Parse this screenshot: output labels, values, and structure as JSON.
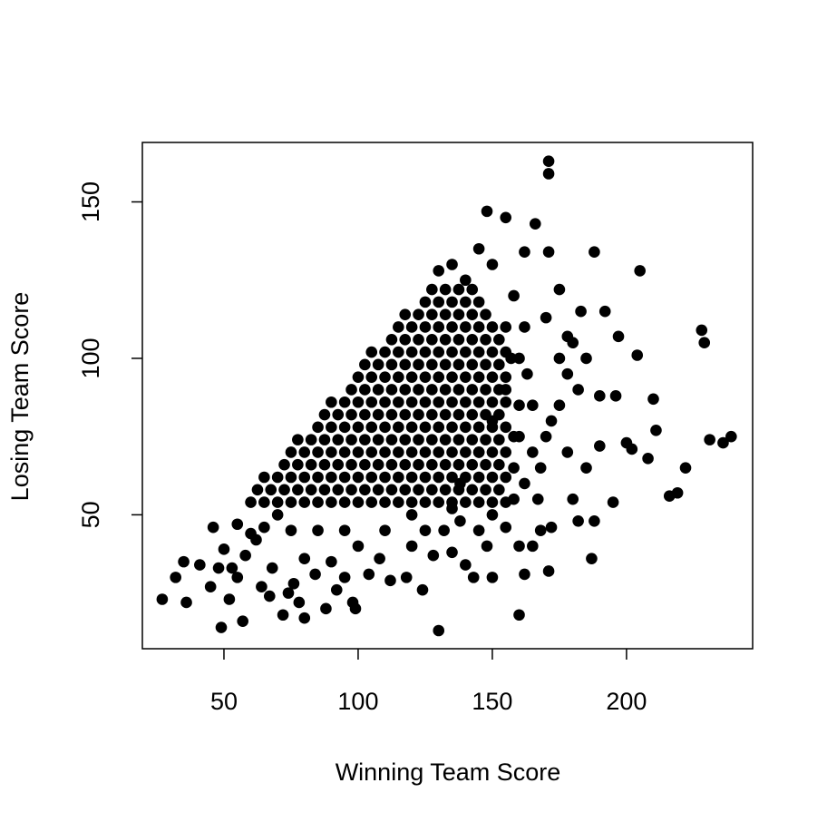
{
  "chart_data": {
    "type": "scatter",
    "x_label": "Winning Team Score",
    "y_label": "Losing Team Score",
    "color": "#000000",
    "xlim": [
      19.6,
      247
    ],
    "ylim": [
      7.2,
      169
    ],
    "xticks": [
      50,
      100,
      150,
      200
    ],
    "yticks": [
      50,
      100,
      150
    ],
    "x": [
      60,
      65,
      70,
      75,
      80,
      85,
      90,
      95,
      100,
      105,
      110,
      115,
      120,
      125,
      130,
      135,
      140,
      145,
      150,
      155,
      62.5,
      67.5,
      72.5,
      77.5,
      82.5,
      87.5,
      92.5,
      97.5,
      102.5,
      107.5,
      112.5,
      117.5,
      122.5,
      127.5,
      132.5,
      137.5,
      142.5,
      147.5,
      152.5,
      65,
      70,
      75,
      80,
      85,
      90,
      95,
      100,
      105,
      110,
      115,
      120,
      125,
      130,
      135,
      140,
      145,
      150,
      155,
      72.5,
      77.5,
      82.5,
      87.5,
      92.5,
      97.5,
      102.5,
      107.5,
      112.5,
      117.5,
      122.5,
      127.5,
      132.5,
      137.5,
      142.5,
      147.5,
      152.5,
      75,
      80,
      85,
      90,
      95,
      100,
      105,
      110,
      115,
      120,
      125,
      130,
      135,
      140,
      145,
      150,
      155,
      77.5,
      82.5,
      87.5,
      92.5,
      97.5,
      102.5,
      107.5,
      112.5,
      117.5,
      122.5,
      127.5,
      132.5,
      137.5,
      142.5,
      147.5,
      152.5,
      85,
      90,
      95,
      100,
      105,
      110,
      115,
      120,
      125,
      130,
      135,
      140,
      145,
      150,
      155,
      87.5,
      92.5,
      97.5,
      102.5,
      107.5,
      112.5,
      117.5,
      122.5,
      127.5,
      132.5,
      137.5,
      142.5,
      147.5,
      152.5,
      90,
      95,
      100,
      105,
      110,
      115,
      120,
      125,
      130,
      135,
      140,
      145,
      150,
      155,
      97.5,
      102.5,
      107.5,
      112.5,
      117.5,
      122.5,
      127.5,
      132.5,
      137.5,
      142.5,
      147.5,
      152.5,
      100,
      105,
      110,
      115,
      120,
      125,
      130,
      135,
      140,
      145,
      150,
      155,
      102.5,
      107.5,
      112.5,
      117.5,
      122.5,
      127.5,
      132.5,
      137.5,
      142.5,
      147.5,
      152.5,
      105,
      110,
      115,
      120,
      125,
      130,
      135,
      140,
      145,
      150,
      155,
      112.5,
      117.5,
      122.5,
      127.5,
      132.5,
      137.5,
      142.5,
      147.5,
      152.5,
      115,
      120,
      125,
      130,
      135,
      140,
      145,
      150,
      117.5,
      122.5,
      127.5,
      132.5,
      137.5,
      142.5,
      147.5,
      125,
      130,
      135,
      140,
      145,
      127.5,
      132.5,
      137.5,
      142.5,
      27,
      32,
      35,
      36,
      41,
      45,
      46,
      48,
      49,
      50,
      52,
      53,
      55,
      57,
      58,
      62,
      64,
      67,
      68,
      72,
      74,
      76,
      78,
      80,
      80,
      84,
      88,
      90,
      92,
      95,
      98,
      99,
      100,
      104,
      108,
      112,
      118,
      120,
      124,
      128,
      130,
      132,
      135,
      138,
      140,
      143,
      148,
      150,
      155,
      160,
      160,
      162,
      165,
      168,
      171,
      172,
      158,
      162,
      165,
      168,
      170,
      172,
      175,
      178,
      180,
      183,
      165,
      160,
      155,
      158,
      150,
      145,
      148,
      155,
      166,
      171,
      171,
      162,
      171,
      175,
      170,
      175,
      178,
      180,
      182,
      185,
      187,
      188,
      190,
      190,
      192,
      195,
      196,
      197,
      200,
      202,
      205,
      204,
      208,
      210,
      211,
      216,
      219,
      222,
      228,
      229,
      231,
      236,
      239,
      188,
      185,
      178,
      182,
      140,
      135,
      130,
      138,
      145,
      150,
      155,
      160,
      163,
      167,
      150,
      145,
      125,
      110,
      95,
      85,
      75,
      70,
      65,
      60,
      55,
      120,
      135,
      158,
      162,
      157,
      160,
      158
    ],
    "values": [
      54,
      54,
      54,
      54,
      54,
      54,
      54,
      54,
      54,
      54,
      54,
      54,
      54,
      54,
      54,
      54,
      54,
      54,
      54,
      54,
      58,
      58,
      58,
      58,
      58,
      58,
      58,
      58,
      58,
      58,
      58,
      58,
      58,
      58,
      58,
      58,
      58,
      58,
      58,
      62,
      62,
      62,
      62,
      62,
      62,
      62,
      62,
      62,
      62,
      62,
      62,
      62,
      62,
      62,
      62,
      62,
      62,
      62,
      66,
      66,
      66,
      66,
      66,
      66,
      66,
      66,
      66,
      66,
      66,
      66,
      66,
      66,
      66,
      66,
      66,
      70,
      70,
      70,
      70,
      70,
      70,
      70,
      70,
      70,
      70,
      70,
      70,
      70,
      70,
      70,
      70,
      70,
      74,
      74,
      74,
      74,
      74,
      74,
      74,
      74,
      74,
      74,
      74,
      74,
      74,
      74,
      74,
      74,
      78,
      78,
      78,
      78,
      78,
      78,
      78,
      78,
      78,
      78,
      78,
      78,
      78,
      78,
      78,
      82,
      82,
      82,
      82,
      82,
      82,
      82,
      82,
      82,
      82,
      82,
      82,
      82,
      82,
      86,
      86,
      86,
      86,
      86,
      86,
      86,
      86,
      86,
      86,
      86,
      86,
      86,
      86,
      90,
      90,
      90,
      90,
      90,
      90,
      90,
      90,
      90,
      90,
      90,
      90,
      94,
      94,
      94,
      94,
      94,
      94,
      94,
      94,
      94,
      94,
      94,
      94,
      98,
      98,
      98,
      98,
      98,
      98,
      98,
      98,
      98,
      98,
      98,
      102,
      102,
      102,
      102,
      102,
      102,
      102,
      102,
      102,
      102,
      102,
      106,
      106,
      106,
      106,
      106,
      106,
      106,
      106,
      106,
      110,
      110,
      110,
      110,
      110,
      110,
      110,
      110,
      114,
      114,
      114,
      114,
      114,
      114,
      114,
      118,
      118,
      118,
      118,
      118,
      122,
      122,
      122,
      122,
      23,
      30,
      35,
      22,
      34,
      27,
      46,
      33,
      14,
      39,
      23,
      33,
      30,
      16,
      37,
      42,
      27,
      24,
      33,
      18,
      25,
      28,
      22,
      17,
      36,
      31,
      20,
      35,
      26,
      30,
      22,
      20,
      40,
      31,
      36,
      29,
      30,
      40,
      26,
      37,
      13,
      45,
      38,
      48,
      34,
      30,
      40,
      30,
      46,
      40,
      18,
      31,
      40,
      45,
      32,
      46,
      55,
      60,
      70,
      65,
      75,
      80,
      85,
      95,
      105,
      115,
      85,
      100,
      110,
      120,
      130,
      135,
      147,
      145,
      143,
      163,
      159,
      134,
      134,
      122,
      113,
      100,
      70,
      55,
      48,
      65,
      36,
      48,
      88,
      72,
      115,
      54,
      88,
      107,
      73,
      71,
      128,
      101,
      68,
      87,
      77,
      56,
      57,
      65,
      109,
      105,
      74,
      73,
      75,
      134,
      100,
      107,
      90,
      125,
      130,
      128,
      60,
      70,
      80,
      90,
      75,
      95,
      55,
      50,
      45,
      45,
      45,
      45,
      45,
      45,
      50,
      46,
      44,
      47,
      50,
      52,
      65,
      110,
      100,
      85,
      75
    ]
  }
}
